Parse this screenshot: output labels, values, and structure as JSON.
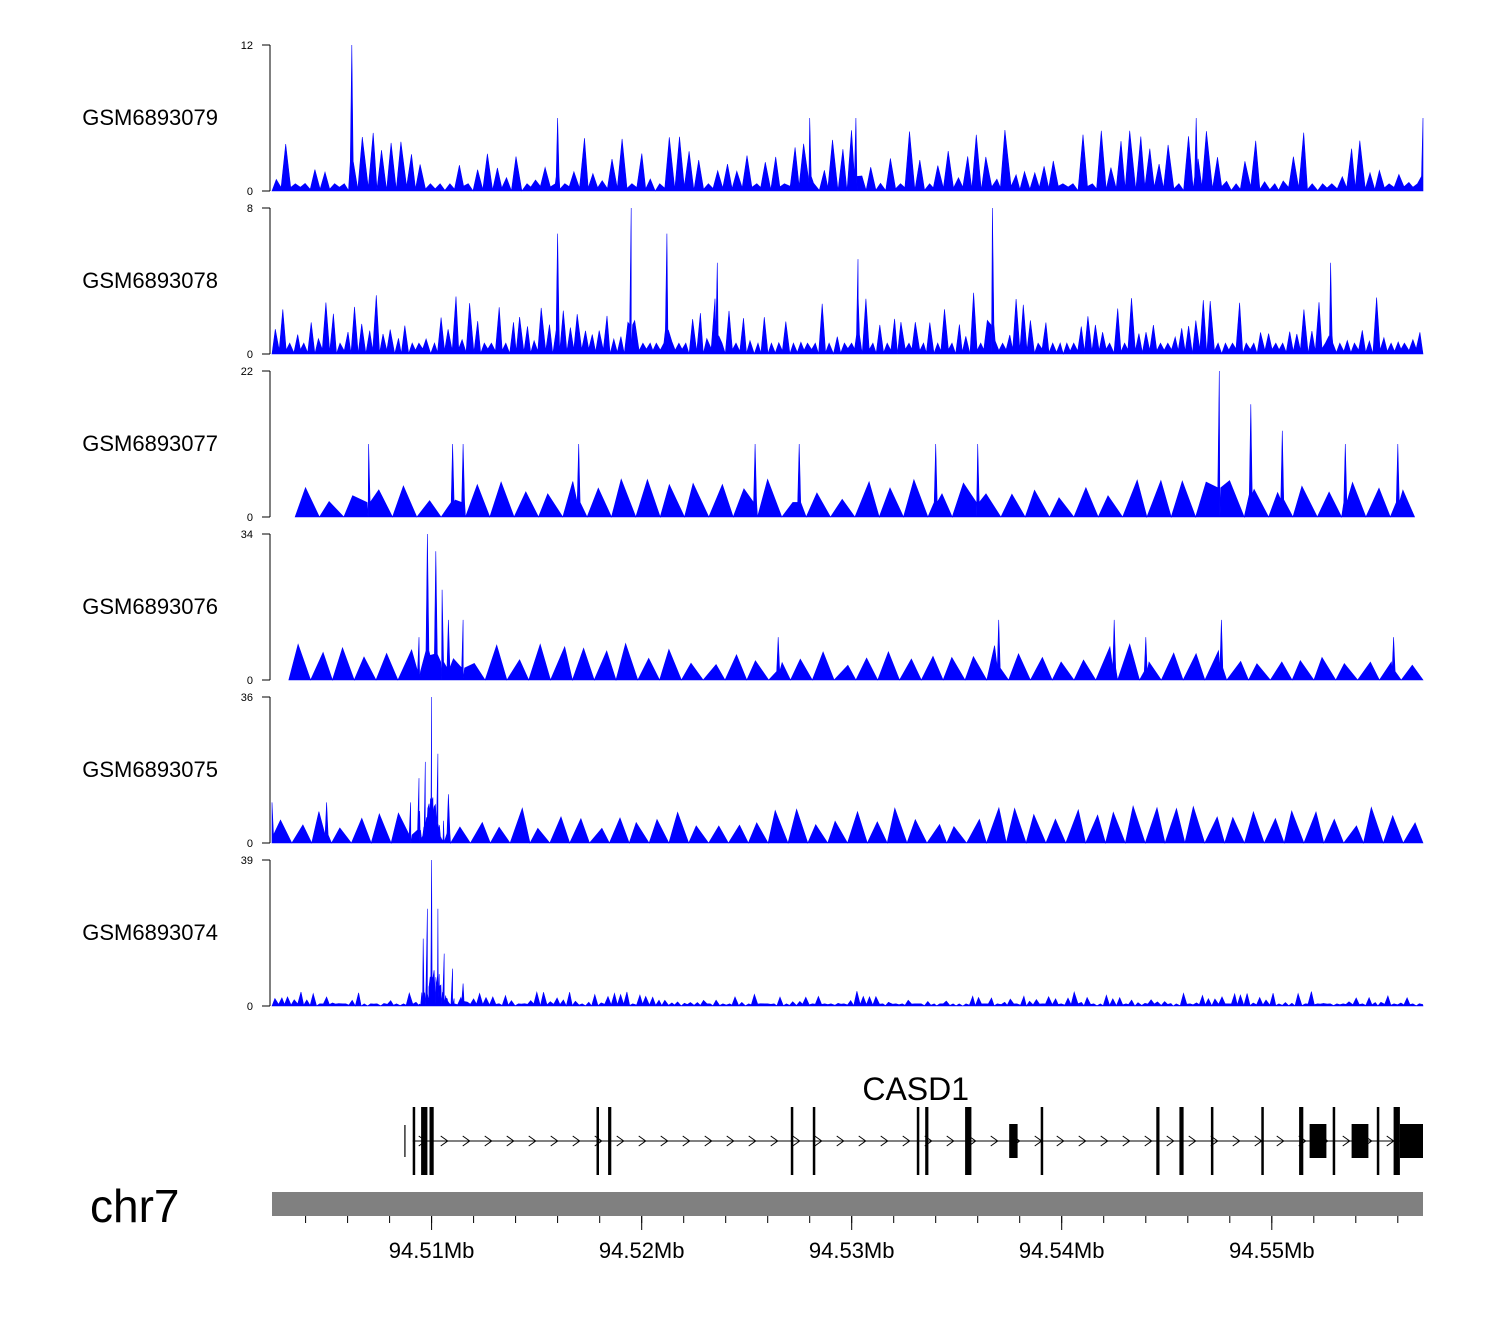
{
  "chart_data": {
    "type": "area",
    "title": "",
    "colors": {
      "signal": "#0000ff",
      "gene": "#000000",
      "ideogram": "#808080"
    },
    "region": {
      "chrom": "chr7",
      "start_mb": 94.5024,
      "end_mb": 94.5572
    },
    "chromosome_label": "chr7",
    "x_axis": {
      "ticks_mb": [
        94.51,
        94.52,
        94.53,
        94.54,
        94.55
      ],
      "tick_labels": [
        "94.51Mb",
        "94.52Mb",
        "94.53Mb",
        "94.54Mb",
        "94.55Mb"
      ],
      "minor_step_mb": 0.002
    },
    "tracks": [
      {
        "name": "GSM6893079",
        "ymin": 0,
        "ymax": 12,
        "ymin_label": "0",
        "ymax_label": "12",
        "pattern": "spiky",
        "baseline": 0.4,
        "spikes": 120,
        "seed": 11,
        "peaks": [
          [
            94.5062,
            12
          ],
          [
            94.516,
            6
          ],
          [
            94.528,
            6
          ],
          [
            94.5302,
            6
          ],
          [
            94.5464,
            6
          ],
          [
            94.5572,
            6
          ]
        ]
      },
      {
        "name": "GSM6893078",
        "ymin": 0,
        "ymax": 8,
        "ymin_label": "0",
        "ymax_label": "8",
        "pattern": "spiky",
        "baseline": 0.3,
        "spikes": 160,
        "seed": 23,
        "peaks": [
          [
            94.516,
            6.6
          ],
          [
            94.5195,
            8
          ],
          [
            94.5212,
            6.6
          ],
          [
            94.5367,
            8
          ],
          [
            94.5236,
            5
          ],
          [
            94.5303,
            5.2
          ],
          [
            94.5528,
            5
          ]
        ]
      },
      {
        "name": "GSM6893077",
        "ymin": 0,
        "ymax": 22,
        "ymin_label": "0",
        "ymax_label": "22",
        "pattern": "tent",
        "baseline": 0,
        "spikes": 46,
        "seed": 37,
        "start_mb": 94.5035,
        "end_mb": 94.5568,
        "peaks": [
          [
            94.507,
            11
          ],
          [
            94.511,
            11
          ],
          [
            94.5115,
            11
          ],
          [
            94.517,
            11
          ],
          [
            94.5254,
            11
          ],
          [
            94.5275,
            11
          ],
          [
            94.534,
            11
          ],
          [
            94.536,
            11
          ],
          [
            94.5475,
            22
          ],
          [
            94.549,
            17
          ],
          [
            94.5505,
            13
          ],
          [
            94.5535,
            11
          ],
          [
            94.556,
            11
          ]
        ]
      },
      {
        "name": "GSM6893076",
        "ymin": 0,
        "ymax": 34,
        "ymin_label": "0",
        "ymax_label": "34",
        "pattern": "tent",
        "baseline": 0,
        "spikes": 52,
        "seed": 51,
        "start_mb": 94.5032,
        "end_mb": 94.5572,
        "peaks": [
          [
            94.5098,
            34
          ],
          [
            94.5102,
            30
          ],
          [
            94.5105,
            21
          ],
          [
            94.5108,
            14
          ],
          [
            94.5115,
            14
          ],
          [
            94.5094,
            10
          ],
          [
            94.5265,
            10
          ],
          [
            94.537,
            14
          ],
          [
            94.5476,
            14
          ],
          [
            94.5425,
            14
          ],
          [
            94.544,
            10
          ],
          [
            94.5558,
            10
          ]
        ]
      },
      {
        "name": "GSM6893075",
        "ymin": 0,
        "ymax": 36,
        "ymin_label": "0",
        "ymax_label": "36",
        "pattern": "tent",
        "baseline": 0,
        "spikes": 58,
        "seed": 67,
        "start_mb": 94.5024,
        "end_mb": 94.5572,
        "peaks": [
          [
            94.51,
            36
          ],
          [
            94.5097,
            20
          ],
          [
            94.5103,
            22
          ],
          [
            94.5094,
            16
          ],
          [
            94.509,
            10
          ],
          [
            94.5108,
            12
          ],
          [
            94.5024,
            10
          ],
          [
            94.505,
            10
          ]
        ],
        "hump": {
          "center_mb": 94.51,
          "width_mb": 0.0012,
          "height": 14
        }
      },
      {
        "name": "GSM6893074",
        "ymin": 0,
        "ymax": 39,
        "ymin_label": "0",
        "ymax_label": "39",
        "pattern": "spiky",
        "baseline": 0.6,
        "spikes": 180,
        "seed": 83,
        "spike_max": 4,
        "peaks": [
          [
            94.51,
            39
          ],
          [
            94.5098,
            26
          ],
          [
            94.5103,
            26
          ],
          [
            94.5096,
            18
          ],
          [
            94.5106,
            14
          ],
          [
            94.511,
            10
          ],
          [
            94.5115,
            6
          ]
        ],
        "hump": {
          "center_mb": 94.5102,
          "width_mb": 0.0016,
          "height": 10
        }
      }
    ],
    "gene": {
      "name": "CASD1",
      "strand": "+",
      "tss_mb": 94.5093,
      "start_mb": 94.5091,
      "end_mb": 94.5572,
      "exons_mb": [
        [
          94.5091,
          94.5092
        ],
        [
          94.5095,
          94.5098
        ],
        [
          94.5099,
          94.5101
        ],
        [
          94.51785,
          94.51795
        ],
        [
          94.5184,
          94.51855
        ],
        [
          94.5271,
          94.5272
        ],
        [
          94.52815,
          94.52825
        ],
        [
          94.5331,
          94.5332
        ],
        [
          94.5335,
          94.53365
        ],
        [
          94.5354,
          94.5357
        ],
        [
          94.5375,
          94.5379
        ],
        [
          94.539,
          94.5391
        ],
        [
          94.5445,
          94.54465
        ],
        [
          94.5456,
          94.5458
        ],
        [
          94.5471,
          94.5472
        ],
        [
          94.5495,
          94.5496
        ],
        [
          94.5513,
          94.5515
        ],
        [
          94.5518,
          94.5526
        ],
        [
          94.5529,
          94.553
        ],
        [
          94.5538,
          94.5546
        ],
        [
          94.555,
          94.5551
        ],
        [
          94.5558,
          94.5561
        ],
        [
          94.5561,
          94.5572
        ]
      ]
    }
  }
}
